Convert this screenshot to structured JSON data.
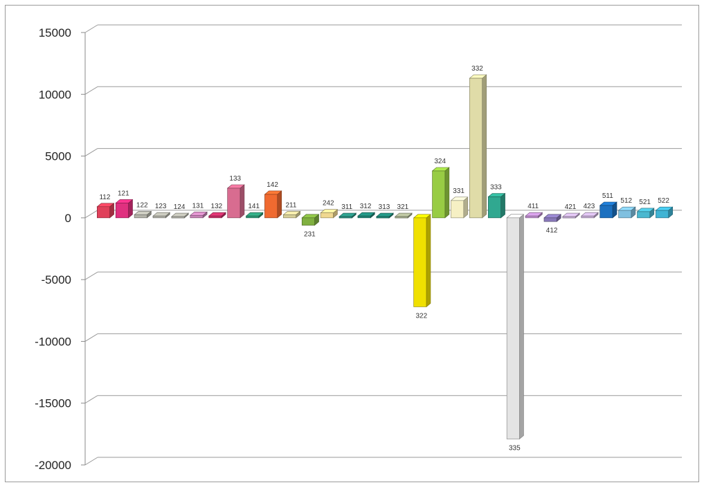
{
  "chart_data": {
    "type": "bar",
    "style": "3d-columns",
    "grid": true,
    "legend": "none",
    "ylim": [
      -20000,
      15000
    ],
    "yticks": [
      15000,
      10000,
      5000,
      0,
      -5000,
      -10000,
      -15000,
      -20000
    ],
    "ytick_labels": [
      "15000",
      "10000",
      "5000",
      "0",
      "-5000",
      "-10000",
      "-15000",
      "-20000"
    ],
    "categories": [
      "112",
      "121",
      "122",
      "123",
      "124",
      "131",
      "132",
      "133",
      "141",
      "142",
      "211",
      "231",
      "242",
      "311",
      "312",
      "313",
      "321",
      "322",
      "324",
      "331",
      "332",
      "333",
      "335",
      "411",
      "412",
      "421",
      "423",
      "511",
      "512",
      "521",
      "522"
    ],
    "values": [
      900,
      1200,
      250,
      150,
      100,
      200,
      150,
      2400,
      150,
      1900,
      250,
      -600,
      400,
      100,
      150,
      100,
      100,
      -7200,
      3800,
      1400,
      11300,
      1700,
      -17900,
      150,
      -300,
      100,
      150,
      1000,
      600,
      500,
      600
    ],
    "colors": [
      "#e0405a",
      "#e0307f",
      "#b4b4aa",
      "#b4b4aa",
      "#b4b4aa",
      "#c884b8",
      "#c83068",
      "#d86c90",
      "#2e9c78",
      "#f06a30",
      "#d8d098",
      "#80b040",
      "#f0d890",
      "#2a9080",
      "#208878",
      "#208878",
      "#a8b090",
      "#f0e000",
      "#98cc44",
      "#f6f0c4",
      "#e0dca8",
      "#30a890",
      "#e4e4e4",
      "#c090d0",
      "#8878b8",
      "#c8b0d8",
      "#c8b0d8",
      "#1c70c0",
      "#80c0e0",
      "#4ab8d0",
      "#40b4d4"
    ]
  }
}
